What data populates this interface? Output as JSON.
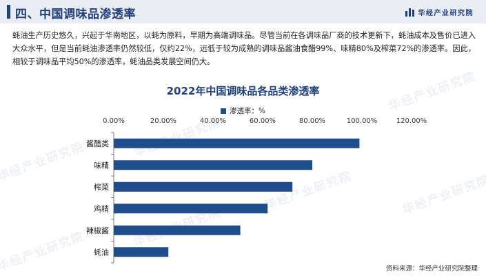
{
  "header": {
    "section_title": "四、中国调味品渗透率",
    "brand": "华经产业研究院"
  },
  "body_text": "蚝油生产历史悠久，兴起于华南地区，以蚝为原料，早期为高端调味品。尽管当前在各调味品厂商的技术更新下，蚝油成本及售价已进入大众水平，但是当前蚝油渗透率仍然较低，仅约22%，远低于较为成熟的调味品酱油食醋99%、味精80%及榨菜72%的渗透率。因此，相较于调味品平均50%的渗透率，蚝油品类发展空间仍大。",
  "source": "资料来源：华经产业研究院整理",
  "watermark": "华经产业研究院",
  "colors": {
    "bar": "#1f4e8c",
    "title": "#1f3f7a"
  },
  "chart_data": {
    "type": "bar",
    "orientation": "horizontal",
    "title": "2022年中国调味品各品类渗透率",
    "categories": [
      "酱醋类",
      "味精",
      "榨菜",
      "鸡精",
      "辣椒酱",
      "蚝油"
    ],
    "series": [
      {
        "name": "渗透率：%",
        "values": [
          99,
          80,
          72,
          62,
          51,
          22
        ]
      }
    ],
    "xlim": [
      0,
      120
    ],
    "xticks": [
      0,
      20,
      40,
      60,
      80,
      100,
      120
    ],
    "xtick_labels": [
      "0.00%",
      "20.00%",
      "40.00%",
      "60.00%",
      "80.00%",
      "100.00%",
      "120.00%"
    ],
    "xaxis_position": "top",
    "grid": false,
    "legend_position": "top"
  }
}
